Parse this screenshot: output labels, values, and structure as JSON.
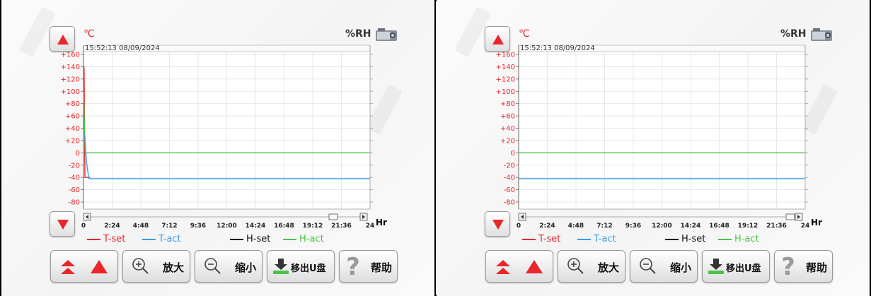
{
  "panels": [
    {
      "id": "left",
      "units": {
        "temp": "℃",
        "humidity": "%RH"
      },
      "timestamp": "15:52:13 08/09/2024",
      "y_ticks": [
        "+160",
        "+140",
        "+120",
        "+100",
        "+80",
        "+60",
        "+40",
        "+20",
        "0",
        "-20",
        "-40",
        "-60",
        "-80"
      ],
      "x_ticks": [
        "0",
        "2:24",
        "4:48",
        "7:12",
        "9:36",
        "12:00",
        "14:24",
        "16:48",
        "19:12",
        "21:36",
        "24"
      ],
      "x_unit": "Hr",
      "legend": {
        "t_set": "T-set",
        "t_act": "T-act",
        "h_set": "H-set",
        "h_act": "H-act"
      },
      "buttons": {
        "zoom_in": "放大",
        "zoom_out": "缩小",
        "eject_usb": "移出U盘",
        "help": "帮助"
      }
    },
    {
      "id": "right",
      "units": {
        "temp": "℃",
        "humidity": "%RH"
      },
      "timestamp": "15:52:13 08/09/2024",
      "y_ticks": [
        "+160",
        "+140",
        "+120",
        "+100",
        "+80",
        "+60",
        "+40",
        "+20",
        "0",
        "-20",
        "-40",
        "-60",
        "-80"
      ],
      "x_ticks": [
        "0",
        "2:24",
        "4:48",
        "7:12",
        "9:36",
        "12:00",
        "14:24",
        "16:48",
        "19:12",
        "21:36",
        "24"
      ],
      "x_unit": "Hr",
      "legend": {
        "t_set": "T-set",
        "t_act": "T-act",
        "h_set": "H-set",
        "h_act": "H-act"
      },
      "buttons": {
        "zoom_in": "放大",
        "zoom_out": "缩小",
        "eject_usb": "移出U盘",
        "help": "帮助"
      }
    }
  ],
  "colors": {
    "t_set": "#e8262b",
    "t_act": "#3a9be8",
    "h_set": "#111111",
    "h_act": "#4cc24c",
    "accent_red": "#e8262b"
  }
}
